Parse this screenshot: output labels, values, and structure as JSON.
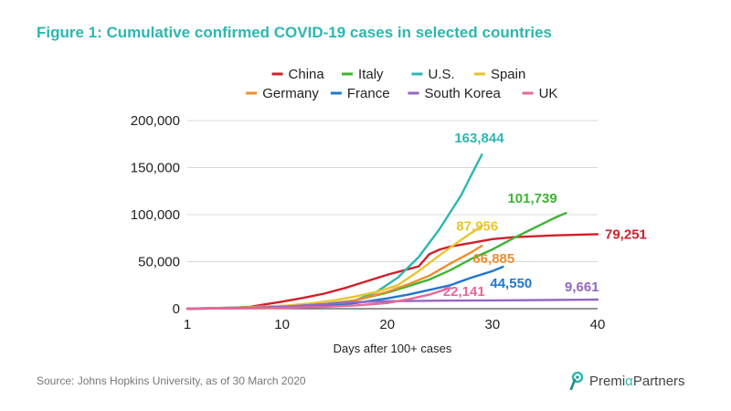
{
  "title": "Figure 1: Cumulative confirmed COVID-19 cases in selected countries",
  "source": "Source: Johns Hopkins University, as of 30 March 2020",
  "brand": {
    "name": "PremiaPartners",
    "part1": "Premi",
    "alpha": "α",
    "part2": "Partners"
  },
  "chart_data": {
    "type": "line",
    "title": "Figure 1: Cumulative confirmed COVID-19 cases in selected countries",
    "xlabel": "Days after 100+ cases",
    "ylabel": "",
    "xlim": [
      1,
      40
    ],
    "ylim": [
      0,
      200000
    ],
    "xticks": [
      1,
      10,
      20,
      30,
      40
    ],
    "xtick_labels": [
      "1",
      "10",
      "20",
      "30",
      "40"
    ],
    "yticks": [
      0,
      50000,
      100000,
      150000,
      200000
    ],
    "ytick_labels": [
      "0",
      "50,000",
      "100,000",
      "150,000",
      "200,000"
    ],
    "grid": "horizontal",
    "legend_position": "top",
    "series": [
      {
        "name": "China",
        "color": "#d11f2a",
        "end_label": "79,251",
        "x": [
          1,
          3,
          5,
          7,
          8,
          10,
          12,
          14,
          16,
          18,
          20,
          22,
          23,
          24,
          25,
          26,
          28,
          30,
          32,
          34,
          36,
          38,
          40
        ],
        "y": [
          0,
          500,
          1000,
          2000,
          4000,
          7500,
          11500,
          16000,
          22000,
          29000,
          36000,
          42000,
          45000,
          58000,
          63000,
          66000,
          70000,
          74000,
          76000,
          77000,
          78000,
          78500,
          79251
        ]
      },
      {
        "name": "Italy",
        "color": "#3cb532",
        "end_label": "101,739",
        "x": [
          1,
          5,
          10,
          14,
          17,
          20,
          22,
          24,
          26,
          28,
          30,
          32,
          34,
          36,
          37
        ],
        "y": [
          0,
          1000,
          3000,
          5000,
          9000,
          17000,
          24000,
          31000,
          41000,
          53000,
          63000,
          75000,
          86000,
          97000,
          101739
        ]
      },
      {
        "name": "U.S.",
        "color": "#2cb7b0",
        "end_label": "163,844",
        "x": [
          1,
          5,
          10,
          14,
          17,
          19,
          21,
          23,
          25,
          27,
          28,
          29
        ],
        "y": [
          0,
          500,
          1500,
          4000,
          9000,
          18000,
          33000,
          55000,
          85000,
          120000,
          142000,
          163844
        ]
      },
      {
        "name": "Spain",
        "color": "#e8c52d",
        "end_label": "87,956",
        "x": [
          1,
          5,
          10,
          13,
          15,
          17,
          19,
          21,
          23,
          25,
          27,
          29
        ],
        "y": [
          0,
          800,
          3000,
          6000,
          9000,
          13000,
          18000,
          25000,
          40000,
          57000,
          73000,
          87956
        ]
      },
      {
        "name": "Germany",
        "color": "#ee8e2f",
        "end_label": "66,885",
        "x": [
          1,
          5,
          10,
          14,
          17,
          20,
          22,
          24,
          26,
          28,
          29
        ],
        "y": [
          0,
          600,
          2000,
          4000,
          9000,
          18000,
          26000,
          35000,
          48000,
          60000,
          66885
        ]
      },
      {
        "name": "France",
        "color": "#1f78d1",
        "end_label": "44,550",
        "x": [
          1,
          5,
          10,
          14,
          17,
          20,
          22,
          24,
          26,
          28,
          30,
          31
        ],
        "y": [
          0,
          400,
          1500,
          3000,
          6000,
          11000,
          15000,
          20000,
          25000,
          33000,
          40000,
          44550
        ]
      },
      {
        "name": "South Korea",
        "color": "#9467c4",
        "end_label": "9,661",
        "x": [
          1,
          5,
          10,
          14,
          17,
          20,
          25,
          30,
          35,
          40
        ],
        "y": [
          0,
          500,
          2000,
          5000,
          7000,
          8000,
          8500,
          8800,
          9200,
          9661
        ]
      },
      {
        "name": "UK",
        "color": "#e6689a",
        "end_label": "22,141",
        "x": [
          1,
          5,
          10,
          14,
          17,
          20,
          22,
          24,
          26
        ],
        "y": [
          0,
          200,
          800,
          2000,
          3500,
          6000,
          10000,
          15000,
          22141
        ]
      }
    ]
  }
}
